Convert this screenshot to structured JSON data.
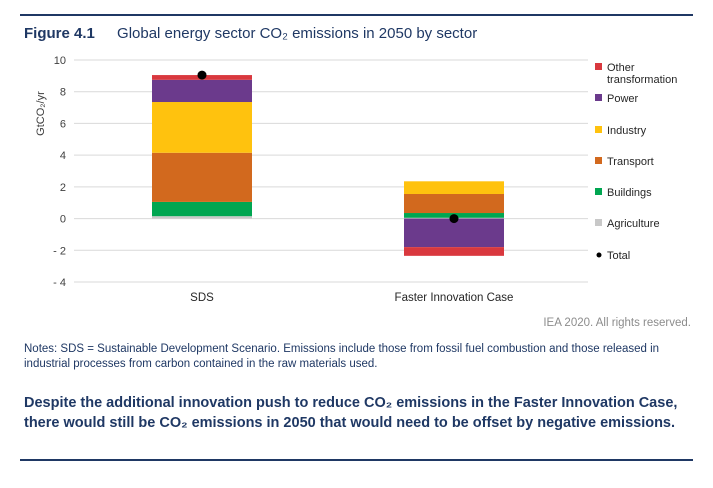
{
  "figure": {
    "number": "Figure 4.1",
    "title": "Global energy sector CO₂ emissions in 2050 by sector"
  },
  "credit": "IEA 2020. All rights reserved.",
  "notes": "Notes: SDS = Sustainable Development Scenario. Emissions include those from fossil fuel combustion and those released in industrial processes from carbon contained in the raw materials used.",
  "takeaway": "Despite the additional innovation push to reduce CO₂ emissions in the Faster Innovation Case, there would still be CO₂ emissions in 2050 that would need to be offset by negative emissions.",
  "chart_data": {
    "type": "bar",
    "stacked": true,
    "categories": [
      "SDS",
      "Faster Innovation Case"
    ],
    "ylabel": "GtCO₂/yr",
    "ylim": [
      -4,
      10
    ],
    "yticks": [
      10,
      8,
      6,
      4,
      2,
      0,
      -2,
      -4
    ],
    "ytick_labels": [
      "10",
      "8",
      "6",
      "4",
      "2",
      "0",
      "- 2",
      "- 4"
    ],
    "grid": true,
    "legend_position": "right",
    "series": [
      {
        "name": "Agriculture",
        "color": "#c8c8c8",
        "values": [
          0.15,
          0.05
        ]
      },
      {
        "name": "Buildings",
        "color": "#00a651",
        "values": [
          0.9,
          0.3
        ]
      },
      {
        "name": "Transport",
        "color": "#d2691e",
        "values": [
          3.1,
          1.2
        ]
      },
      {
        "name": "Industry",
        "color": "#ffc20e",
        "values": [
          3.2,
          0.8
        ]
      },
      {
        "name": "Power",
        "color": "#6b3a8c",
        "values": [
          1.4,
          -1.8
        ]
      },
      {
        "name": "Other transformation",
        "color": "#d9383e",
        "values": [
          0.3,
          -0.55
        ]
      }
    ],
    "total": {
      "name": "Total",
      "color": "#000000",
      "values": [
        9.05,
        0.0
      ]
    },
    "legend": [
      {
        "name": "Other transformation",
        "lines": [
          "Other",
          "transformation"
        ],
        "color": "#d9383e",
        "marker": "square"
      },
      {
        "name": "Power",
        "lines": [
          "Power"
        ],
        "color": "#6b3a8c",
        "marker": "square"
      },
      {
        "name": "Industry",
        "lines": [
          "Industry"
        ],
        "color": "#ffc20e",
        "marker": "square"
      },
      {
        "name": "Transport",
        "lines": [
          "Transport"
        ],
        "color": "#d2691e",
        "marker": "square"
      },
      {
        "name": "Buildings",
        "lines": [
          "Buildings"
        ],
        "color": "#00a651",
        "marker": "square"
      },
      {
        "name": "Agriculture",
        "lines": [
          "Agriculture"
        ],
        "color": "#c8c8c8",
        "marker": "square"
      },
      {
        "name": "Total",
        "lines": [
          "Total"
        ],
        "color": "#000000",
        "marker": "dot"
      }
    ]
  }
}
